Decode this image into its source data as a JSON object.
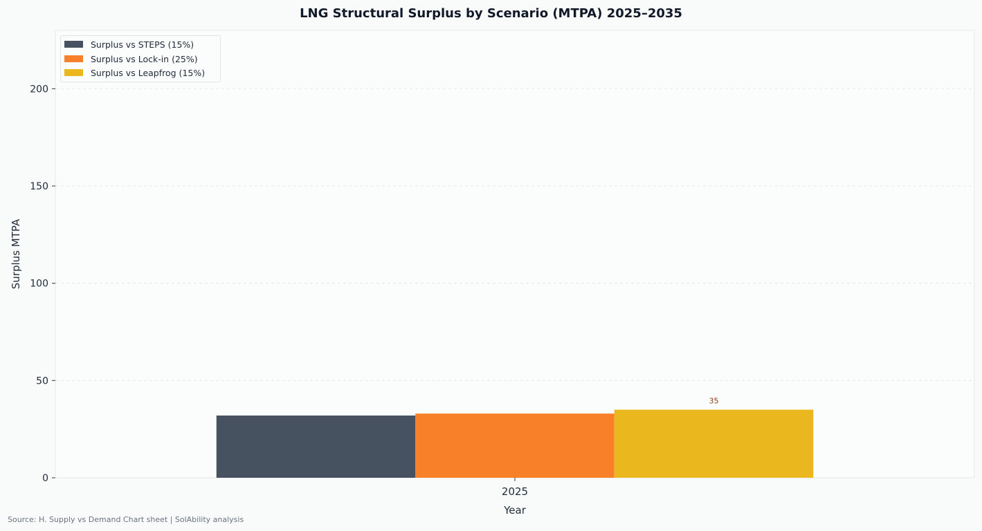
{
  "chart_data": {
    "type": "bar",
    "title": "LNG Structural Surplus by Scenario  (MTPA)  2025–2035",
    "xlabel": "Year",
    "ylabel": "Surplus MTPA",
    "categories": [
      "2025"
    ],
    "series": [
      {
        "name": "Surplus vs STEPS (15%)",
        "values": [
          32
        ],
        "color": "#475260"
      },
      {
        "name": "Surplus vs Lock-in (25%)",
        "values": [
          33
        ],
        "color": "#f88028"
      },
      {
        "name": "Surplus vs Leapfrog (15%)",
        "values": [
          35
        ],
        "color": "#eab81e"
      }
    ],
    "data_labels": [
      {
        "series": 2,
        "category": "2025",
        "text": "35"
      }
    ],
    "ylim": [
      0,
      230
    ],
    "yticks": [
      0,
      50,
      100,
      150,
      200
    ],
    "grid": true,
    "legend_position": "top-left"
  },
  "source": "Source: H. Supply vs Demand Chart sheet | SolAbility analysis"
}
